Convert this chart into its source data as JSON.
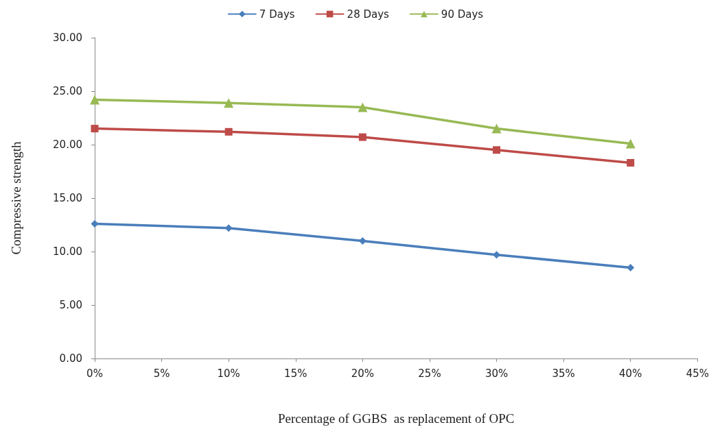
{
  "chart_data": {
    "type": "line",
    "xlabel": "Percentage of GGBS  as replacement of OPC",
    "ylabel": "Compressive strength",
    "x": [
      0,
      10,
      20,
      30,
      40
    ],
    "xlim": [
      0,
      45
    ],
    "xticks": [
      {
        "value": 0,
        "label": "0%"
      },
      {
        "value": 5,
        "label": "5%"
      },
      {
        "value": 10,
        "label": "10%"
      },
      {
        "value": 15,
        "label": "15%"
      },
      {
        "value": 20,
        "label": "20%"
      },
      {
        "value": 25,
        "label": "25%"
      },
      {
        "value": 30,
        "label": "30%"
      },
      {
        "value": 35,
        "label": "35%"
      },
      {
        "value": 40,
        "label": "40%"
      },
      {
        "value": 45,
        "label": "45%"
      }
    ],
    "ylim": [
      0,
      30
    ],
    "yticks": [
      {
        "value": 0,
        "label": "0.00"
      },
      {
        "value": 5,
        "label": "5.00"
      },
      {
        "value": 10,
        "label": "10.00"
      },
      {
        "value": 15,
        "label": "15.00"
      },
      {
        "value": 20,
        "label": "20.00"
      },
      {
        "value": 25,
        "label": "25.00"
      },
      {
        "value": 30,
        "label": "30.00"
      }
    ],
    "series": [
      {
        "name": "7 Days",
        "color": "#4a7ebb",
        "marker": "diamond",
        "values": [
          12.6,
          12.2,
          11.0,
          9.7,
          8.5
        ]
      },
      {
        "name": "28 Days",
        "color": "#be4b48",
        "marker": "square",
        "values": [
          21.5,
          21.2,
          20.7,
          19.5,
          18.3
        ]
      },
      {
        "name": "90 Days",
        "color": "#98b954",
        "marker": "triangle",
        "values": [
          24.2,
          23.9,
          23.5,
          21.5,
          20.1
        ]
      }
    ],
    "legend": "top",
    "grid": false,
    "line_style": "solid"
  }
}
